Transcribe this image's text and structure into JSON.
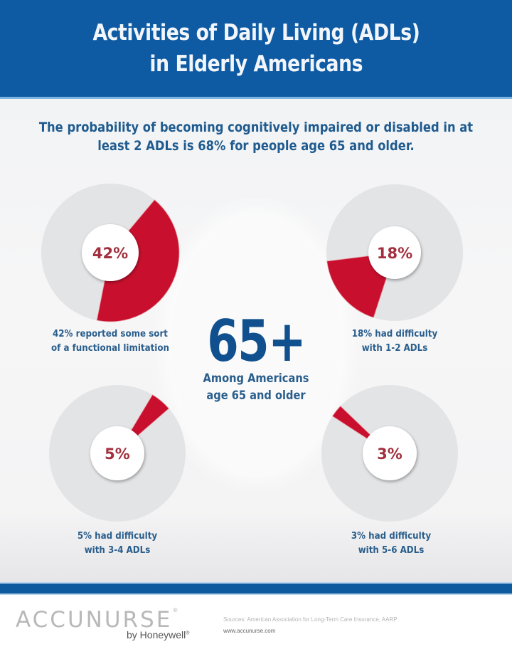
{
  "header": {
    "title_line1": "Activities of Daily Living (ADLs)",
    "title_line2": "in Elderly Americans"
  },
  "subtitle": {
    "line1": "The probability of becoming cognitively impaired or disabled in at",
    "line2": "least 2 ADLs is 68% for people age 65 and older."
  },
  "center": {
    "big_number": "65+",
    "caption_line1": "Among Americans",
    "caption_line2": "age 65 and older"
  },
  "colors": {
    "header_blue": "#0e5aa3",
    "slice_red": "#c8102e",
    "ring_gray": "#e3e4e6",
    "text_blue": "#2a5e8c"
  },
  "chart_data": {
    "type": "pie",
    "title": "Activities of Daily Living (ADLs) in Elderly Americans",
    "population": "Americans age 65 and older",
    "charts": [
      {
        "label": "42%",
        "value": 42,
        "caption_line1": "42% reported some sort",
        "caption_line2": "of a functional limitation"
      },
      {
        "label": "18%",
        "value": 18,
        "caption_line1": "18% had difficulty",
        "caption_line2": "with 1-2 ADLs"
      },
      {
        "label": "5%",
        "value": 5,
        "caption_line1": "5% had difficulty",
        "caption_line2": "with 3-4 ADLs"
      },
      {
        "label": "3%",
        "value": 3,
        "caption_line1": "3% had difficulty",
        "caption_line2": "with 5-6 ADLs"
      }
    ],
    "annotations": [
      "The probability of becoming cognitively impaired or disabled in at least 2 ADLs is 68% for people age 65 and older."
    ]
  },
  "footer": {
    "logo": "ACCUNURSE",
    "byline": "by Honeywell",
    "sources": "Sources: American Association for Long-Term Care Insurance, AARP",
    "website": "www.accunurse.com"
  }
}
